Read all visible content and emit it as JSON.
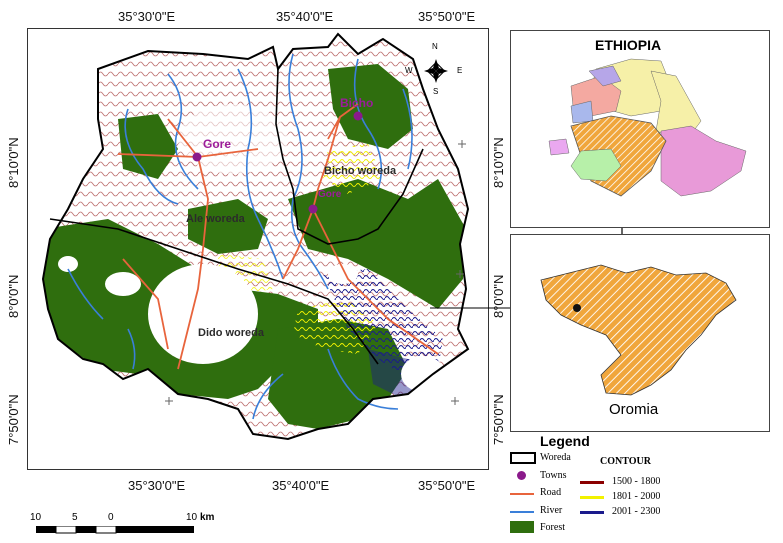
{
  "coords": {
    "top": [
      "35°30'0\"E",
      "35°40'0\"E",
      "35°50'0\"E"
    ],
    "bottom": [
      "35°30'0\"E",
      "35°40'0\"E",
      "35°50'0\"E"
    ],
    "left": [
      "8°10'0\"N",
      "8°0'0\"N",
      "7°50'0\"N"
    ],
    "right": [
      "8°10'0\"N",
      "8°0'0\"N",
      "7°50'0\"N"
    ]
  },
  "map_labels": {
    "gore": "Gore",
    "bicho": "Bicho",
    "bicho_woreda": "Bicho woreda",
    "ale_woreda": "Ale woreda",
    "dido_woreda": "Dido woreda",
    "small_town": "Gore"
  },
  "compass": {
    "n": "N",
    "s": "S",
    "e": "E",
    "w": "W"
  },
  "insets": {
    "ethiopia": "ETHIOPIA",
    "oromia": "Oromia"
  },
  "legend": {
    "title": "Legend",
    "items": [
      "Woreda",
      "Towns",
      "Road",
      "River",
      "Forest"
    ],
    "contour_title": "CONTOUR",
    "contours": [
      "1500 - 1800",
      "1801 - 2000",
      "2001 - 2300"
    ]
  },
  "scale": {
    "ticks": [
      "10",
      "5",
      "0",
      "10"
    ],
    "unit": "km"
  },
  "colors": {
    "forest": "#2f6e0e",
    "contour_low": "#8b0000",
    "contour_mid": "#f2f200",
    "contour_high": "#1a1a8c",
    "road": "#e8643c",
    "river": "#3a7fd9",
    "town": "#8b1a8b",
    "oromia": "#f0a63c"
  }
}
